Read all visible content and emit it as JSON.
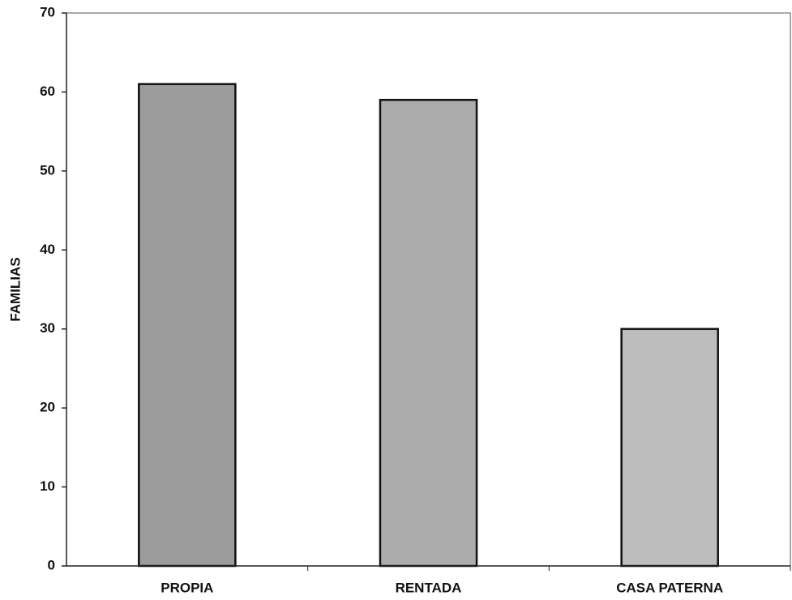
{
  "chart_data": {
    "type": "bar",
    "y_label": "FAMILIAS",
    "categories": [
      "PROPIA",
      "RENTADA",
      "CASA PATERNA"
    ],
    "values": [
      61,
      59,
      30
    ],
    "colors": [
      "#9c9c9c",
      "#acacac",
      "#bdbdbd"
    ],
    "ylim": [
      0,
      70
    ],
    "yticks": [
      0,
      10,
      20,
      30,
      40,
      50,
      60,
      70
    ],
    "grid": false
  }
}
